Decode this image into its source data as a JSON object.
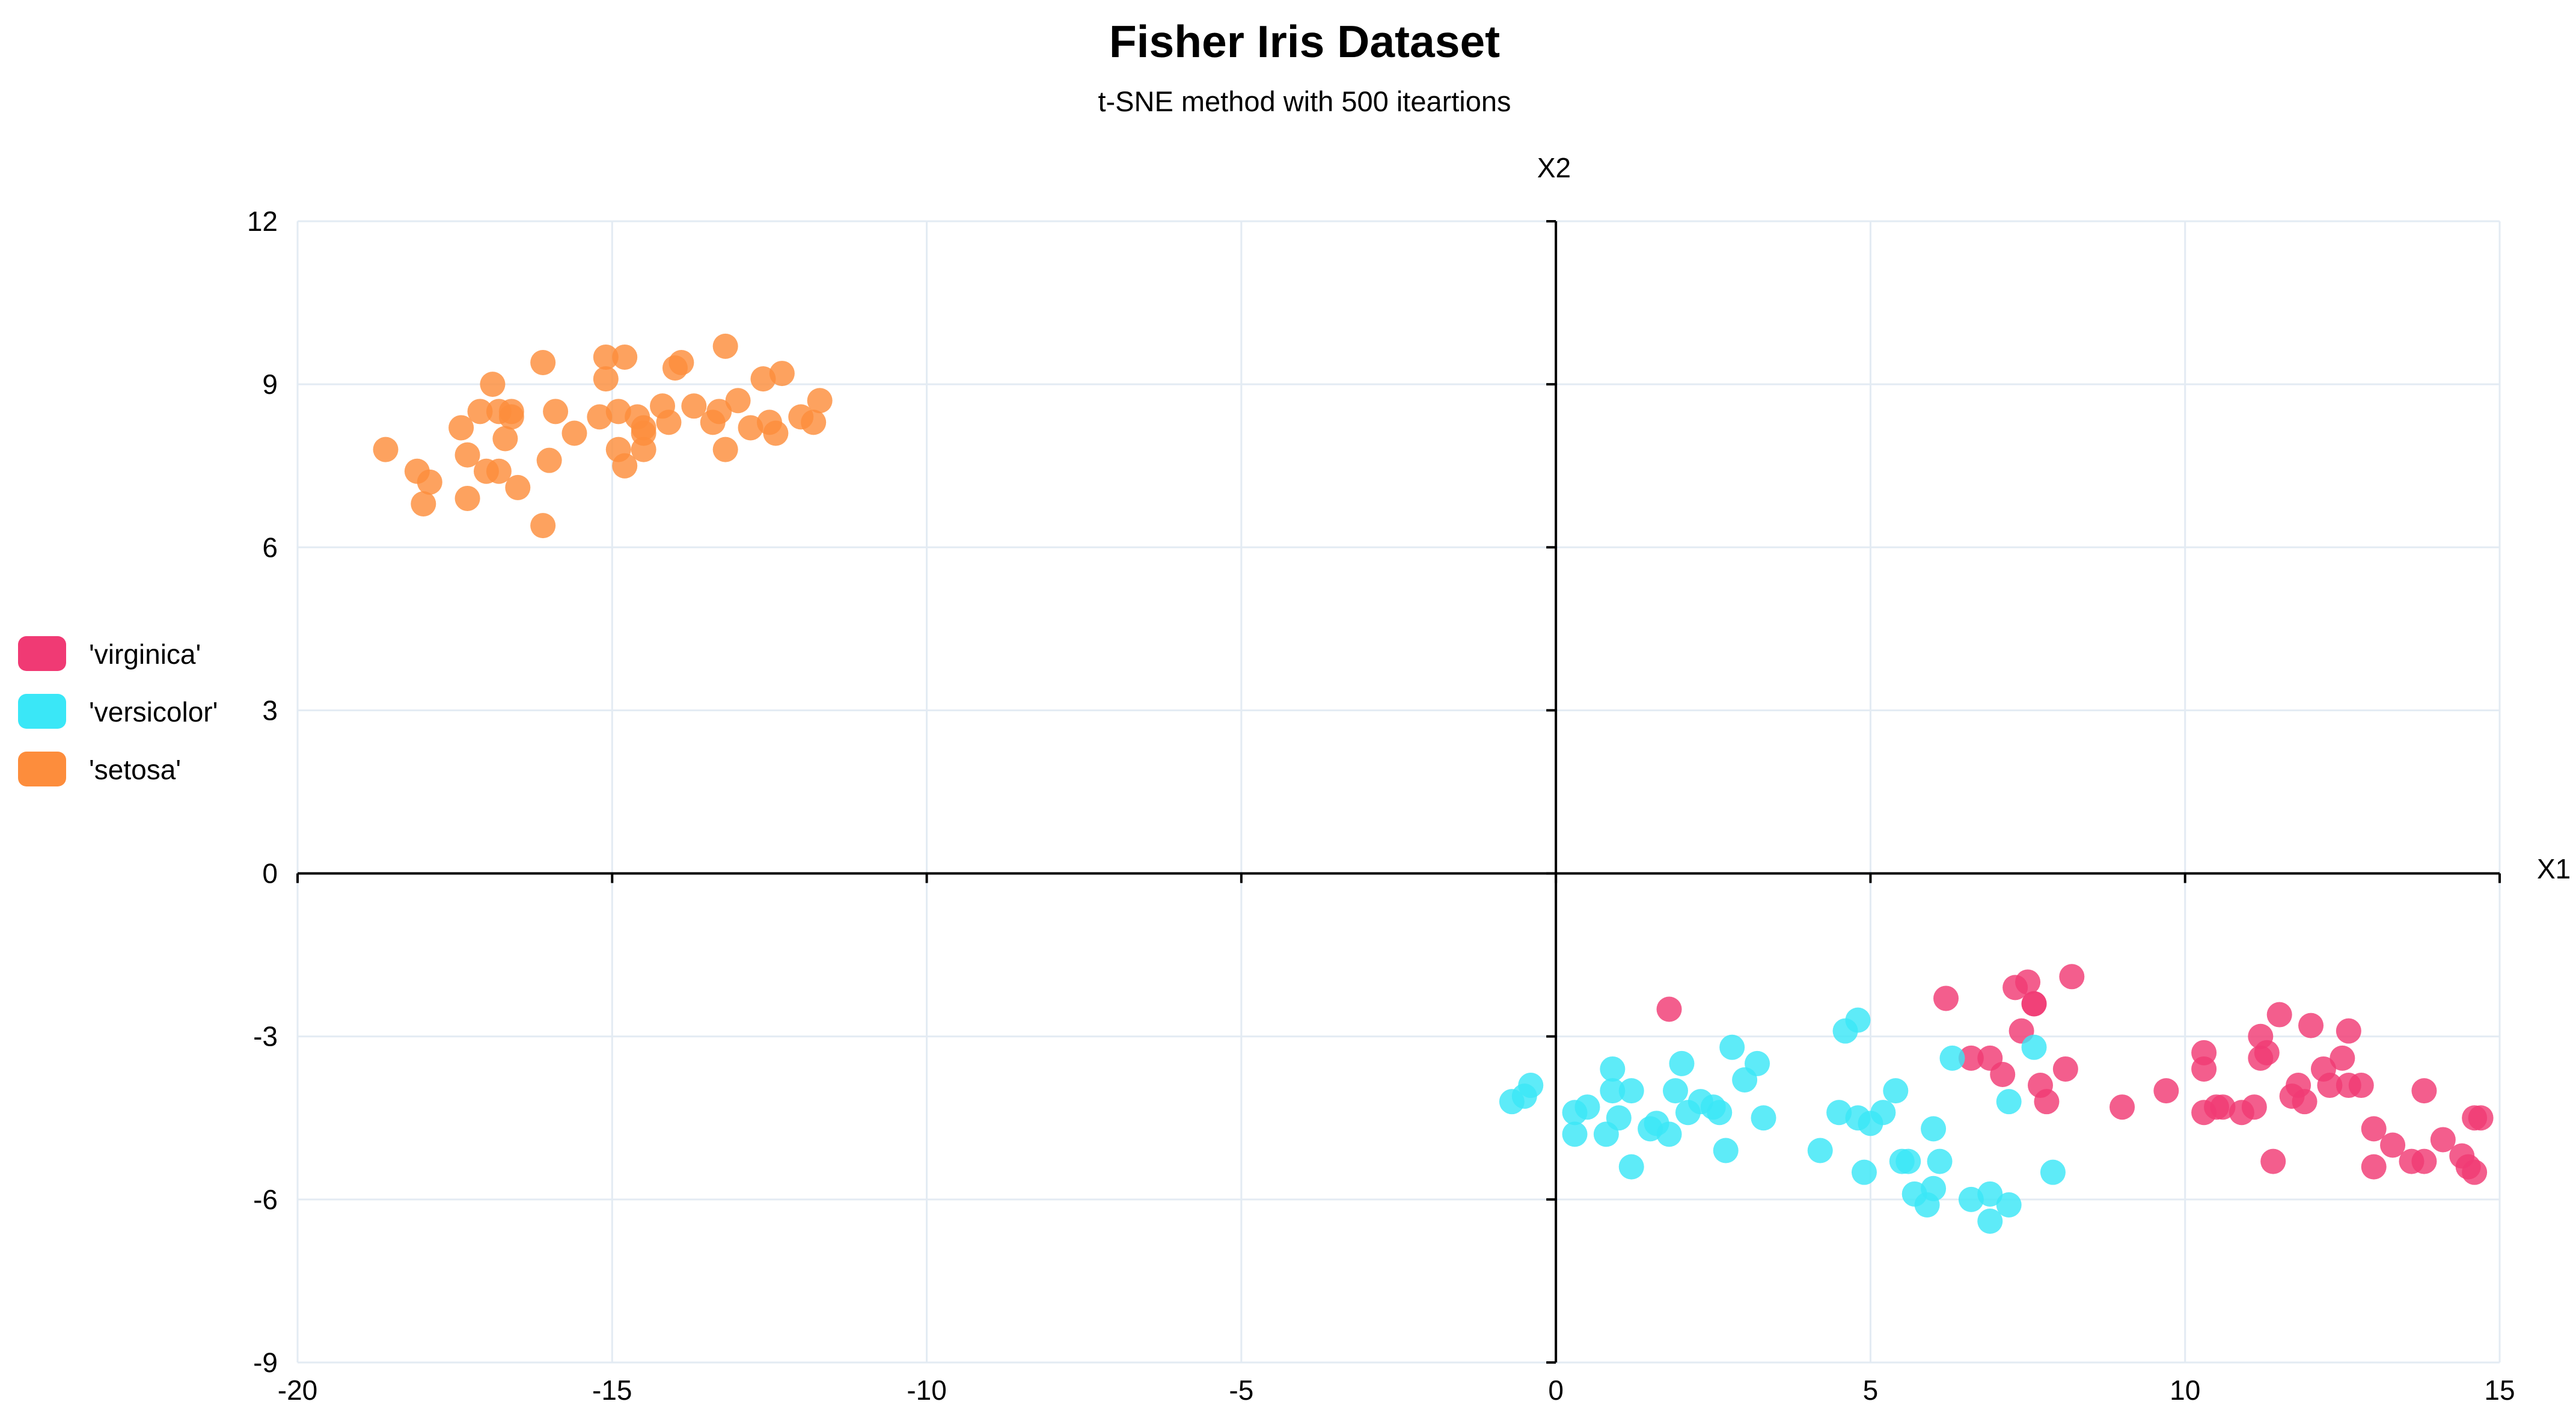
{
  "chart_data": {
    "type": "scatter",
    "title": "Fisher Iris Dataset",
    "subtitle": "t-SNE method with 500 iteartions",
    "xlabel": "X1",
    "ylabel": "X2",
    "xlim": [
      -20,
      15
    ],
    "ylim": [
      -9,
      12
    ],
    "xticks": [
      "-20",
      "-15",
      "-10",
      "-5",
      "0",
      "5",
      "10",
      "15"
    ],
    "yticks": [
      "-9",
      "-6",
      "-3",
      "0",
      "3",
      "6",
      "9",
      "12"
    ],
    "grid": true,
    "legend_position": "left",
    "series": [
      {
        "name": "'virginica'",
        "color": "#f03a74",
        "points": [
          [
            1.8,
            -2.5
          ],
          [
            6.2,
            -2.3
          ],
          [
            6.6,
            -3.4
          ],
          [
            6.9,
            -3.4
          ],
          [
            7.1,
            -3.7
          ],
          [
            7.3,
            -2.1
          ],
          [
            7.4,
            -2.9
          ],
          [
            7.5,
            -2.0
          ],
          [
            7.6,
            -2.4
          ],
          [
            7.6,
            -2.4
          ],
          [
            7.7,
            -3.9
          ],
          [
            7.8,
            -4.2
          ],
          [
            8.1,
            -3.6
          ],
          [
            8.2,
            -1.9
          ],
          [
            9.0,
            -4.3
          ],
          [
            9.7,
            -4.0
          ],
          [
            10.3,
            -3.3
          ],
          [
            10.3,
            -3.6
          ],
          [
            10.3,
            -4.4
          ],
          [
            10.5,
            -4.3
          ],
          [
            10.6,
            -4.3
          ],
          [
            10.9,
            -4.4
          ],
          [
            11.1,
            -4.3
          ],
          [
            11.2,
            -3.0
          ],
          [
            11.2,
            -3.4
          ],
          [
            11.3,
            -3.3
          ],
          [
            11.4,
            -5.3
          ],
          [
            11.5,
            -2.6
          ],
          [
            11.7,
            -4.1
          ],
          [
            11.8,
            -3.9
          ],
          [
            11.9,
            -4.2
          ],
          [
            12.0,
            -2.8
          ],
          [
            12.2,
            -3.6
          ],
          [
            12.3,
            -3.9
          ],
          [
            12.5,
            -3.4
          ],
          [
            12.6,
            -2.9
          ],
          [
            12.6,
            -3.9
          ],
          [
            12.8,
            -3.9
          ],
          [
            13.0,
            -4.7
          ],
          [
            13.0,
            -5.4
          ],
          [
            13.3,
            -5.0
          ],
          [
            13.6,
            -5.3
          ],
          [
            13.8,
            -5.3
          ],
          [
            13.8,
            -4.0
          ],
          [
            14.1,
            -4.9
          ],
          [
            14.4,
            -5.2
          ],
          [
            14.5,
            -5.4
          ],
          [
            14.6,
            -4.5
          ],
          [
            14.6,
            -5.5
          ],
          [
            14.7,
            -4.5
          ]
        ]
      },
      {
        "name": "'versicolor'",
        "color": "#3ae7f7",
        "points": [
          [
            -0.7,
            -4.2
          ],
          [
            -0.5,
            -4.1
          ],
          [
            -0.4,
            -3.9
          ],
          [
            0.3,
            -4.4
          ],
          [
            0.3,
            -4.8
          ],
          [
            0.5,
            -4.3
          ],
          [
            0.8,
            -4.8
          ],
          [
            0.9,
            -3.6
          ],
          [
            0.9,
            -4.0
          ],
          [
            1.0,
            -4.5
          ],
          [
            1.2,
            -4.0
          ],
          [
            1.2,
            -5.4
          ],
          [
            1.5,
            -4.7
          ],
          [
            1.6,
            -4.6
          ],
          [
            1.8,
            -4.8
          ],
          [
            1.9,
            -4.0
          ],
          [
            2.0,
            -3.5
          ],
          [
            2.1,
            -4.4
          ],
          [
            2.3,
            -4.2
          ],
          [
            2.5,
            -4.3
          ],
          [
            2.6,
            -4.4
          ],
          [
            2.7,
            -5.1
          ],
          [
            2.8,
            -3.2
          ],
          [
            3.0,
            -3.8
          ],
          [
            3.2,
            -3.5
          ],
          [
            3.3,
            -4.5
          ],
          [
            4.2,
            -5.1
          ],
          [
            4.5,
            -4.4
          ],
          [
            4.6,
            -2.9
          ],
          [
            4.8,
            -2.7
          ],
          [
            4.8,
            -4.5
          ],
          [
            4.9,
            -5.5
          ],
          [
            5.0,
            -4.6
          ],
          [
            5.2,
            -4.4
          ],
          [
            5.4,
            -4.0
          ],
          [
            5.6,
            -5.3
          ],
          [
            5.7,
            -5.9
          ],
          [
            5.9,
            -6.1
          ],
          [
            6.0,
            -4.7
          ],
          [
            6.0,
            -5.8
          ],
          [
            6.1,
            -5.3
          ],
          [
            6.3,
            -3.4
          ],
          [
            6.6,
            -6.0
          ],
          [
            6.9,
            -6.4
          ],
          [
            6.9,
            -5.9
          ],
          [
            7.2,
            -4.2
          ],
          [
            7.2,
            -6.1
          ],
          [
            7.6,
            -3.2
          ],
          [
            7.9,
            -5.5
          ],
          [
            5.5,
            -5.3
          ]
        ]
      },
      {
        "name": "'setosa'",
        "color": "#fd8d3c",
        "points": [
          [
            -18.6,
            7.8
          ],
          [
            -18.1,
            7.4
          ],
          [
            -18.0,
            6.8
          ],
          [
            -17.9,
            7.2
          ],
          [
            -17.4,
            8.2
          ],
          [
            -17.3,
            6.9
          ],
          [
            -17.3,
            7.7
          ],
          [
            -17.1,
            8.5
          ],
          [
            -17.0,
            7.4
          ],
          [
            -16.9,
            9.0
          ],
          [
            -16.8,
            8.5
          ],
          [
            -16.8,
            7.4
          ],
          [
            -16.7,
            8.0
          ],
          [
            -16.6,
            8.5
          ],
          [
            -16.5,
            7.1
          ],
          [
            -16.1,
            9.4
          ],
          [
            -16.1,
            6.4
          ],
          [
            -16.0,
            7.6
          ],
          [
            -15.9,
            8.5
          ],
          [
            -15.6,
            8.1
          ],
          [
            -15.2,
            8.4
          ],
          [
            -15.1,
            9.1
          ],
          [
            -15.1,
            9.5
          ],
          [
            -14.9,
            8.5
          ],
          [
            -14.9,
            7.8
          ],
          [
            -14.8,
            7.5
          ],
          [
            -14.8,
            9.5
          ],
          [
            -14.6,
            8.4
          ],
          [
            -14.5,
            8.2
          ],
          [
            -14.5,
            8.1
          ],
          [
            -14.5,
            7.8
          ],
          [
            -14.2,
            8.6
          ],
          [
            -14.0,
            9.3
          ],
          [
            -13.9,
            9.4
          ],
          [
            -13.7,
            8.6
          ],
          [
            -13.4,
            8.3
          ],
          [
            -13.3,
            8.5
          ],
          [
            -13.2,
            7.8
          ],
          [
            -13.2,
            9.7
          ],
          [
            -13.0,
            8.7
          ],
          [
            -12.8,
            8.2
          ],
          [
            -12.6,
            9.1
          ],
          [
            -12.5,
            8.3
          ],
          [
            -12.4,
            8.1
          ],
          [
            -12.3,
            9.2
          ],
          [
            -12.0,
            8.4
          ],
          [
            -11.8,
            8.3
          ],
          [
            -11.7,
            8.7
          ],
          [
            -16.6,
            8.4
          ],
          [
            -14.1,
            8.3
          ]
        ]
      }
    ]
  }
}
